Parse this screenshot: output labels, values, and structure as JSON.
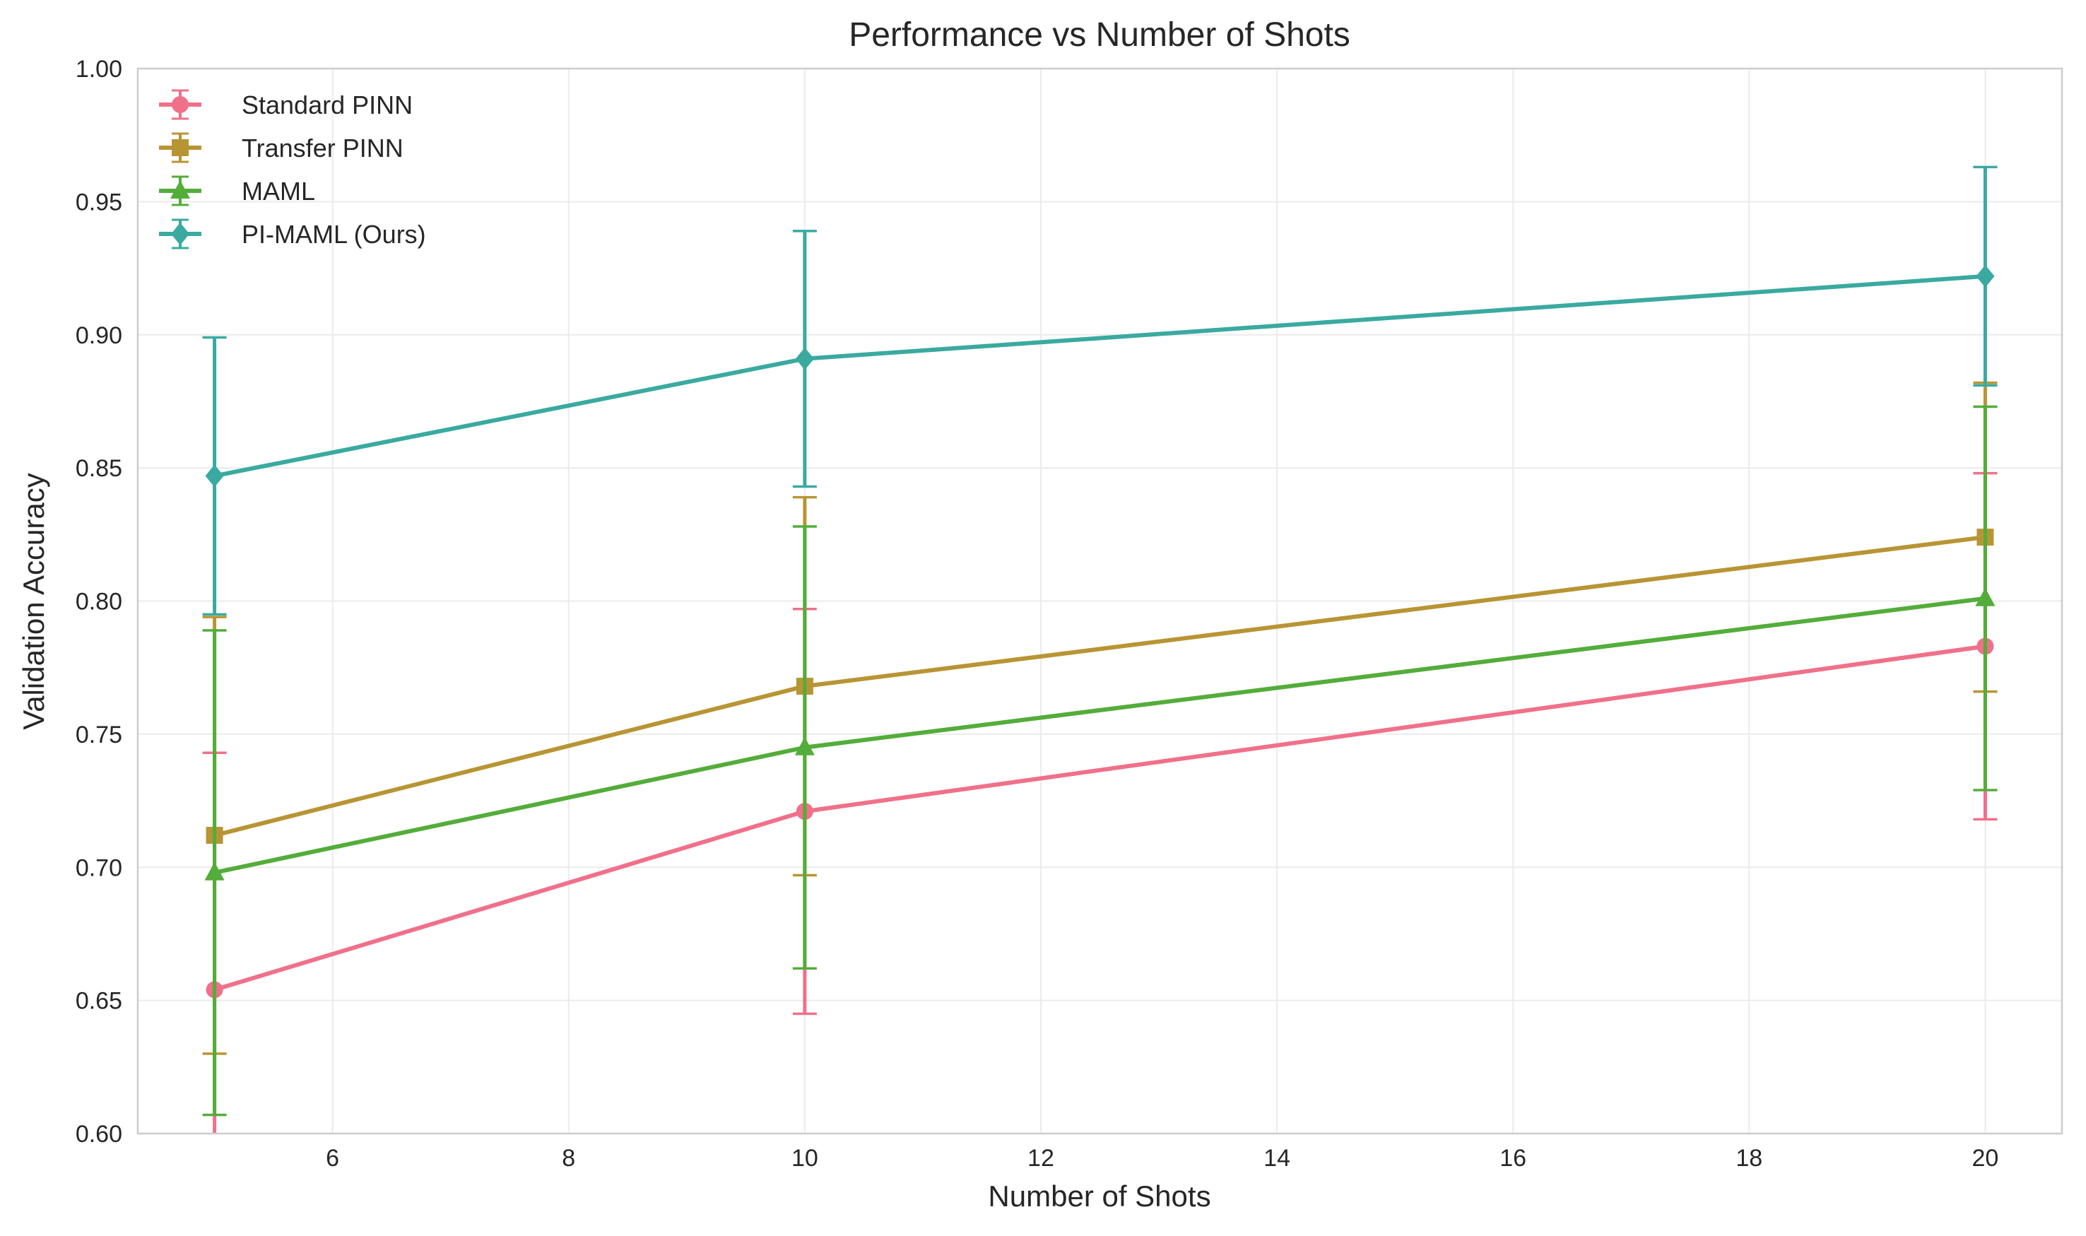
{
  "chart_data": {
    "type": "line",
    "title": "Performance vs Number of Shots",
    "xlabel": "Number of Shots",
    "ylabel": "Validation Accuracy",
    "xlim": [
      4.35,
      20.65
    ],
    "ylim": [
      0.6,
      1.0
    ],
    "x_ticks": [
      6,
      8,
      10,
      12,
      14,
      16,
      18,
      20
    ],
    "y_ticks": [
      0.6,
      0.65,
      0.7,
      0.75,
      0.8,
      0.85,
      0.9,
      0.95,
      1.0
    ],
    "x_tick_labels": [
      "6",
      "8",
      "10",
      "12",
      "14",
      "16",
      "18",
      "20"
    ],
    "y_tick_labels": [
      "0.60",
      "0.65",
      "0.70",
      "0.75",
      "0.80",
      "0.85",
      "0.90",
      "0.95",
      "1.00"
    ],
    "grid": true,
    "legend_position": "top-left",
    "x": [
      5,
      10,
      20
    ],
    "series": [
      {
        "name": "Standard PINN",
        "marker": "circle",
        "color": "#f0708a",
        "values": [
          0.654,
          0.721,
          0.783
        ],
        "errors": [
          0.089,
          0.076,
          0.065
        ]
      },
      {
        "name": "Transfer PINN",
        "marker": "square",
        "color": "#b89534",
        "values": [
          0.712,
          0.768,
          0.824
        ],
        "errors": [
          0.082,
          0.071,
          0.058
        ]
      },
      {
        "name": "MAML",
        "marker": "triangle",
        "color": "#53ad3a",
        "values": [
          0.698,
          0.745,
          0.801
        ],
        "errors": [
          0.091,
          0.083,
          0.072
        ]
      },
      {
        "name": "PI-MAML (Ours)",
        "marker": "diamond",
        "color": "#3aaaa0",
        "values": [
          0.847,
          0.891,
          0.922
        ],
        "errors": [
          0.052,
          0.048,
          0.041
        ]
      }
    ]
  }
}
